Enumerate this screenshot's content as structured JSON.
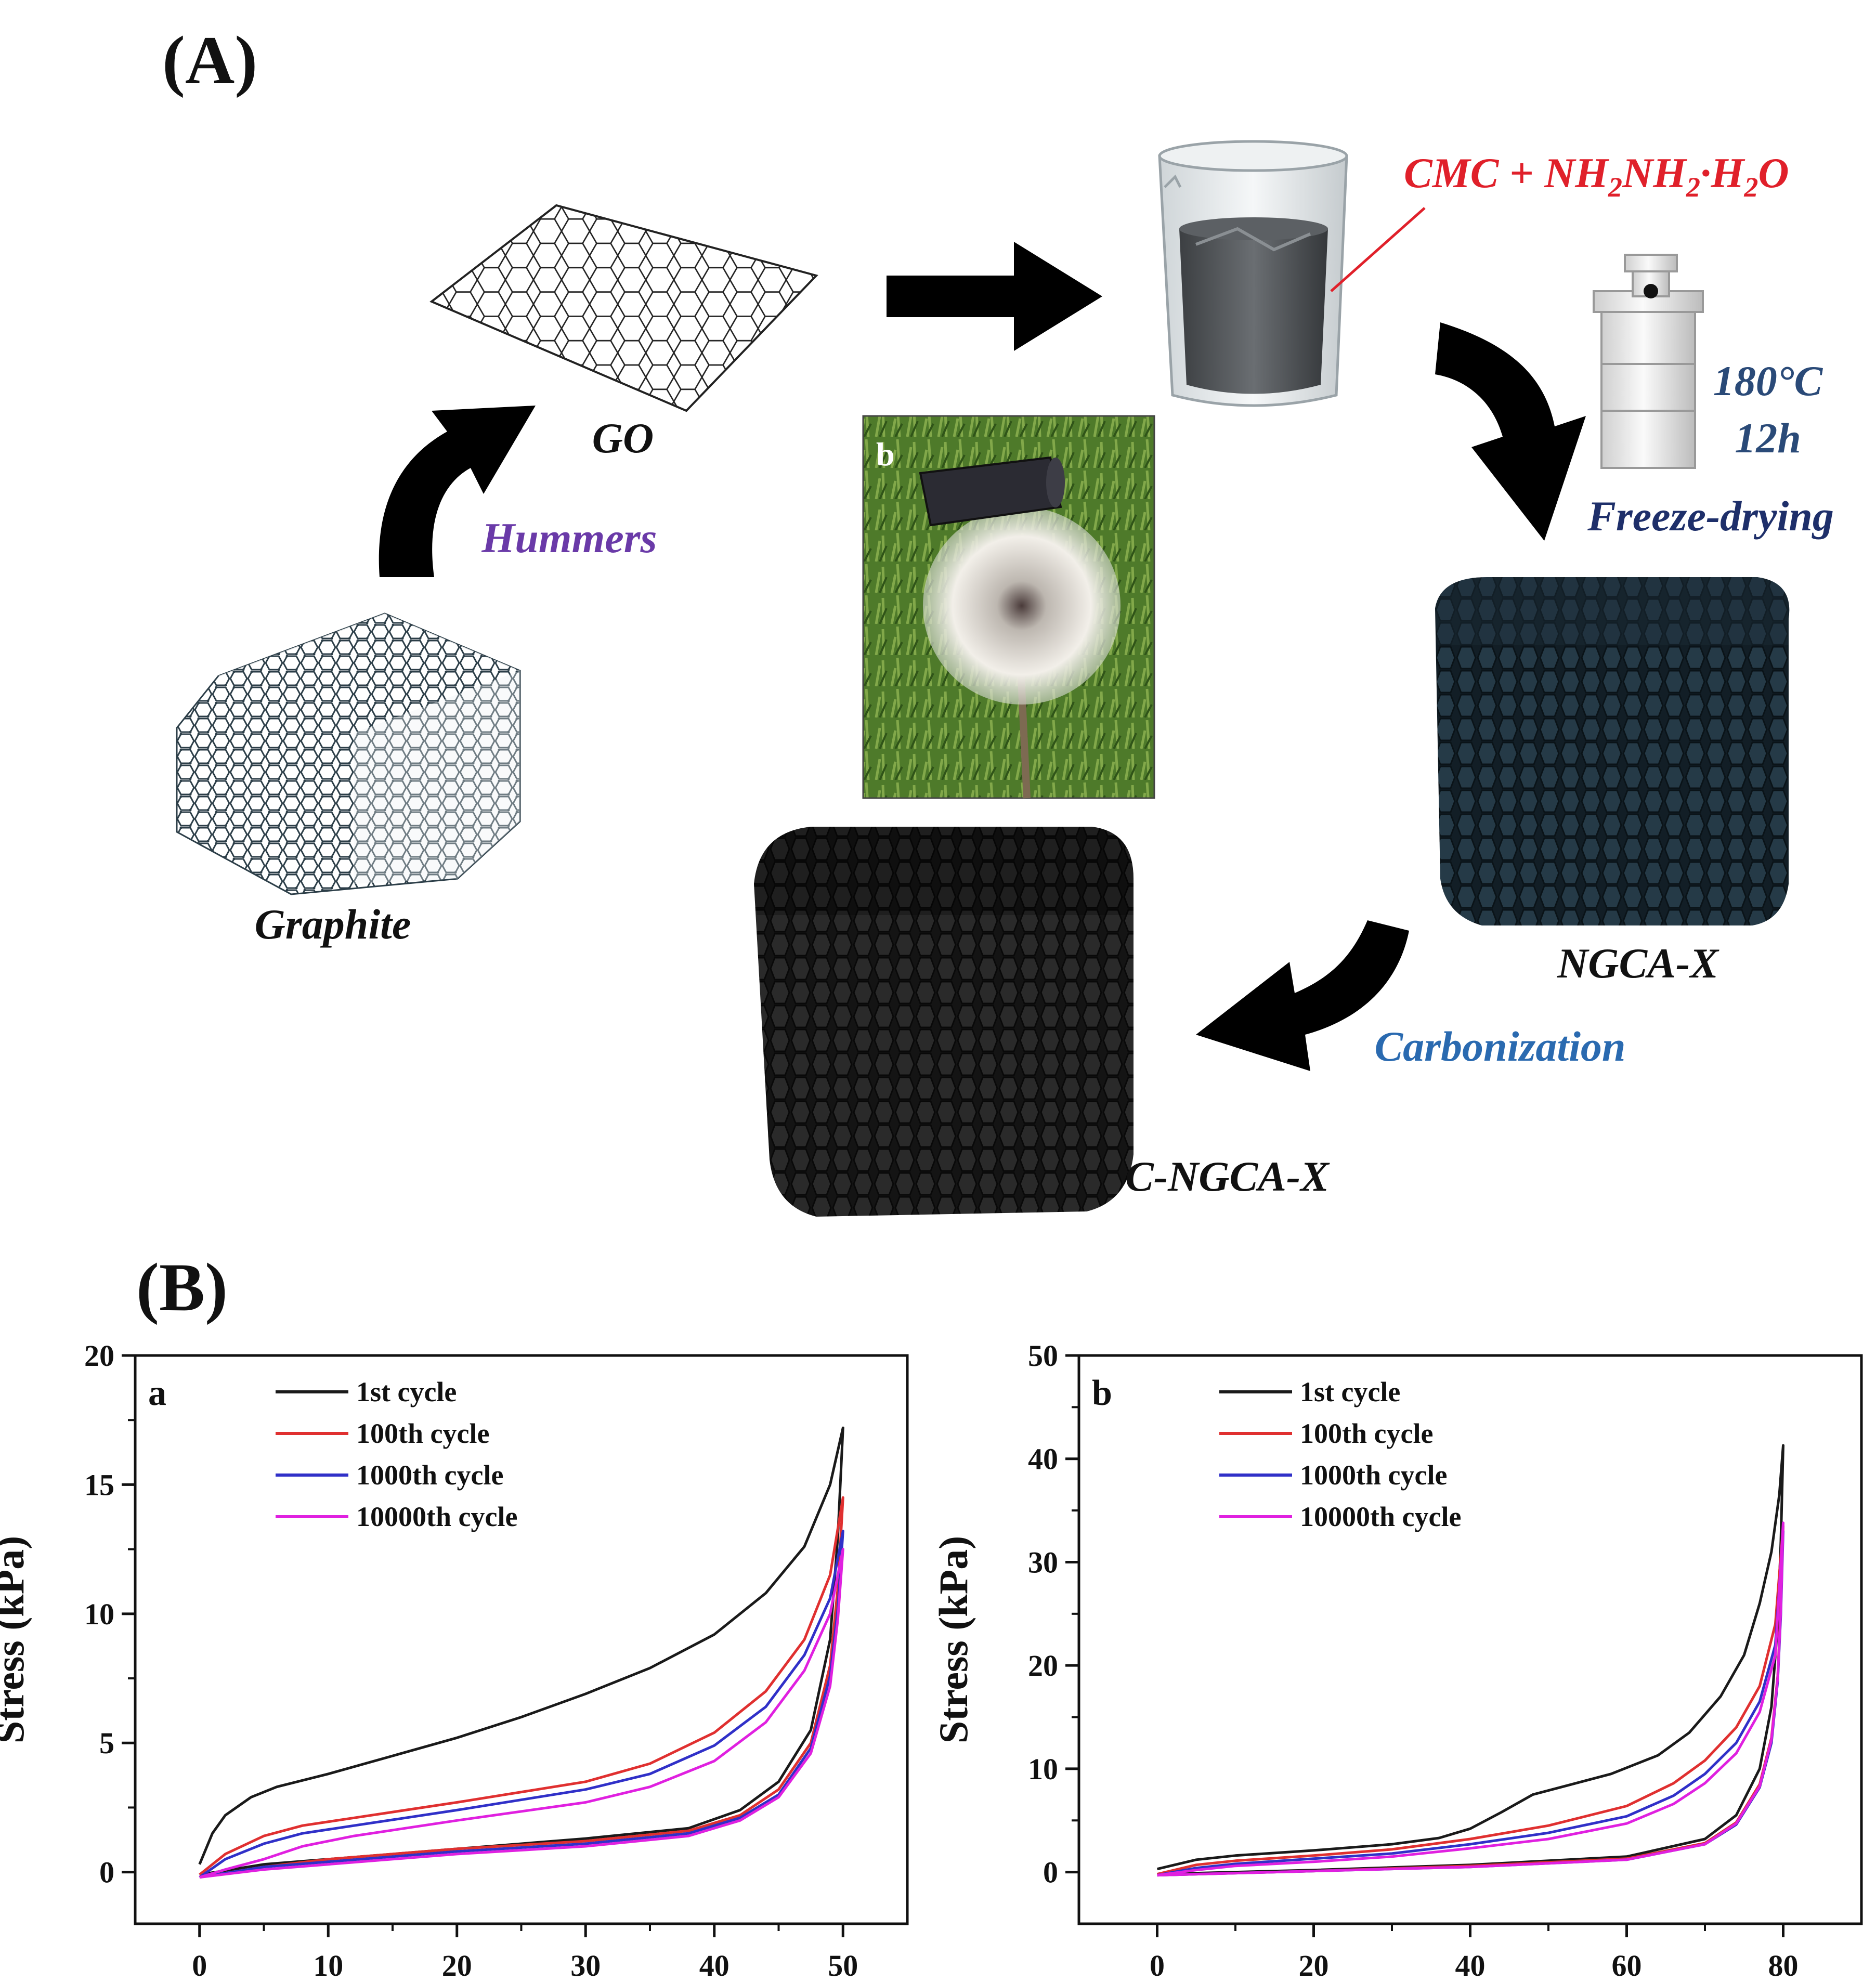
{
  "panels": {
    "A": "(A)",
    "B": "(B)"
  },
  "scheme": {
    "graphite": "Graphite",
    "go": "GO",
    "hummers": "Hummers",
    "reagent_prefix": "CMC + NH",
    "reagent_sub1": "2",
    "reagent_mid": "NH",
    "reagent_sub2": "2",
    "reagent_suffix": "·H",
    "reagent_sub3": "2",
    "reagent_end": "O",
    "temperature": "180°C",
    "duration": "12h",
    "freeze_drying": "Freeze-drying",
    "ngca": "NGCA-X",
    "carbonization": "Carbonization",
    "cngca": "C-NGCA-X",
    "photo_letter": "b"
  },
  "colors": {
    "hummers": "#6a3aa8",
    "reagent": "#e0202a",
    "hydrothermal": "#2a4a78",
    "freeze": "#1e2f6a",
    "carbonization": "#2a6ab0",
    "arrow": "#000000"
  },
  "chart_data": [
    {
      "type": "line",
      "panel_letter": "a",
      "ylabel": "Stress (kPa)",
      "xlim": [
        -5,
        55
      ],
      "ylim": [
        -2,
        20
      ],
      "xticks": [
        0,
        10,
        20,
        30,
        40,
        50
      ],
      "yticks": [
        0,
        5,
        10,
        15,
        20
      ],
      "legend_position": "top-left",
      "series": [
        {
          "name": "1st cycle",
          "color": "#1a1a1a",
          "loading": [
            [
              0,
              0.3
            ],
            [
              1,
              1.5
            ],
            [
              2,
              2.2
            ],
            [
              4,
              2.9
            ],
            [
              6,
              3.3
            ],
            [
              10,
              3.8
            ],
            [
              15,
              4.5
            ],
            [
              20,
              5.2
            ],
            [
              25,
              6.0
            ],
            [
              30,
              6.9
            ],
            [
              35,
              7.9
            ],
            [
              40,
              9.2
            ],
            [
              44,
              10.8
            ],
            [
              47,
              12.6
            ],
            [
              49,
              15.0
            ],
            [
              50,
              17.2
            ]
          ],
          "unloading": [
            [
              50,
              17.2
            ],
            [
              49.6,
              13.0
            ],
            [
              49,
              9.0
            ],
            [
              47.5,
              5.5
            ],
            [
              45,
              3.5
            ],
            [
              42,
              2.4
            ],
            [
              38,
              1.7
            ],
            [
              30,
              1.3
            ],
            [
              20,
              0.9
            ],
            [
              10,
              0.5
            ],
            [
              5,
              0.3
            ],
            [
              0,
              -0.1
            ]
          ]
        },
        {
          "name": "100th cycle",
          "color": "#e03030",
          "loading": [
            [
              0,
              -0.1
            ],
            [
              2,
              0.7
            ],
            [
              5,
              1.4
            ],
            [
              8,
              1.8
            ],
            [
              12,
              2.1
            ],
            [
              20,
              2.7
            ],
            [
              30,
              3.5
            ],
            [
              35,
              4.2
            ],
            [
              40,
              5.4
            ],
            [
              44,
              7.0
            ],
            [
              47,
              9.0
            ],
            [
              49,
              11.5
            ],
            [
              50,
              14.5
            ]
          ],
          "unloading": [
            [
              50,
              14.5
            ],
            [
              49.6,
              11.0
            ],
            [
              49,
              8.0
            ],
            [
              47.5,
              5.0
            ],
            [
              45,
              3.2
            ],
            [
              42,
              2.2
            ],
            [
              38,
              1.6
            ],
            [
              30,
              1.2
            ],
            [
              20,
              0.9
            ],
            [
              10,
              0.5
            ],
            [
              5,
              0.2
            ],
            [
              0,
              -0.2
            ]
          ]
        },
        {
          "name": "1000th cycle",
          "color": "#3030c8",
          "loading": [
            [
              0,
              -0.2
            ],
            [
              2,
              0.5
            ],
            [
              5,
              1.1
            ],
            [
              8,
              1.5
            ],
            [
              12,
              1.8
            ],
            [
              20,
              2.4
            ],
            [
              30,
              3.2
            ],
            [
              35,
              3.8
            ],
            [
              40,
              4.9
            ],
            [
              44,
              6.4
            ],
            [
              47,
              8.4
            ],
            [
              49,
              10.6
            ],
            [
              50,
              13.2
            ]
          ],
          "unloading": [
            [
              50,
              13.2
            ],
            [
              49.6,
              10.2
            ],
            [
              49,
              7.6
            ],
            [
              47.5,
              4.8
            ],
            [
              45,
              3.0
            ],
            [
              42,
              2.1
            ],
            [
              38,
              1.5
            ],
            [
              30,
              1.1
            ],
            [
              20,
              0.8
            ],
            [
              10,
              0.4
            ],
            [
              5,
              0.2
            ],
            [
              0,
              -0.2
            ]
          ]
        },
        {
          "name": "10000th cycle",
          "color": "#e020e0",
          "loading": [
            [
              0,
              -0.2
            ],
            [
              2,
              0.1
            ],
            [
              5,
              0.5
            ],
            [
              8,
              1.0
            ],
            [
              12,
              1.4
            ],
            [
              20,
              2.0
            ],
            [
              30,
              2.7
            ],
            [
              35,
              3.3
            ],
            [
              40,
              4.3
            ],
            [
              44,
              5.8
            ],
            [
              47,
              7.8
            ],
            [
              49,
              10.0
            ],
            [
              50,
              12.5
            ]
          ],
          "unloading": [
            [
              50,
              12.5
            ],
            [
              49.6,
              9.8
            ],
            [
              49,
              7.2
            ],
            [
              47.5,
              4.6
            ],
            [
              45,
              2.9
            ],
            [
              42,
              2.0
            ],
            [
              38,
              1.4
            ],
            [
              30,
              1.0
            ],
            [
              20,
              0.7
            ],
            [
              10,
              0.3
            ],
            [
              5,
              0.1
            ],
            [
              0,
              -0.2
            ]
          ]
        }
      ]
    },
    {
      "type": "line",
      "panel_letter": "b",
      "ylabel": "Stress (kPa)",
      "xlim": [
        -10,
        90
      ],
      "ylim": [
        -5,
        50
      ],
      "xticks": [
        0,
        20,
        40,
        60,
        80
      ],
      "yticks": [
        0,
        10,
        20,
        30,
        40,
        50
      ],
      "legend_position": "top-left",
      "series": [
        {
          "name": "1st cycle",
          "color": "#1a1a1a",
          "loading": [
            [
              0,
              0.3
            ],
            [
              5,
              1.2
            ],
            [
              10,
              1.6
            ],
            [
              20,
              2.1
            ],
            [
              30,
              2.7
            ],
            [
              36,
              3.3
            ],
            [
              40,
              4.2
            ],
            [
              44,
              5.8
            ],
            [
              48,
              7.5
            ],
            [
              52,
              8.3
            ],
            [
              58,
              9.5
            ],
            [
              64,
              11.3
            ],
            [
              68,
              13.5
            ],
            [
              72,
              17.0
            ],
            [
              75,
              21.0
            ],
            [
              77,
              26.0
            ],
            [
              78.5,
              31.0
            ],
            [
              79.5,
              36.5
            ],
            [
              80,
              41.3
            ]
          ],
          "unloading": [
            [
              80,
              41.3
            ],
            [
              79.7,
              32.0
            ],
            [
              79.3,
              24.0
            ],
            [
              78.5,
              16.0
            ],
            [
              77,
              10.0
            ],
            [
              74,
              5.5
            ],
            [
              70,
              3.2
            ],
            [
              60,
              1.5
            ],
            [
              40,
              0.7
            ],
            [
              20,
              0.2
            ],
            [
              0,
              -0.2
            ]
          ]
        },
        {
          "name": "100th cycle",
          "color": "#e03030",
          "loading": [
            [
              0,
              -0.2
            ],
            [
              5,
              0.7
            ],
            [
              10,
              1.1
            ],
            [
              20,
              1.6
            ],
            [
              30,
              2.2
            ],
            [
              40,
              3.2
            ],
            [
              50,
              4.5
            ],
            [
              60,
              6.4
            ],
            [
              66,
              8.6
            ],
            [
              70,
              10.8
            ],
            [
              74,
              14.0
            ],
            [
              77,
              18.0
            ],
            [
              79,
              24.0
            ],
            [
              80,
              33.5
            ]
          ],
          "unloading": [
            [
              80,
              33.5
            ],
            [
              79.7,
              26.0
            ],
            [
              79.3,
              19.0
            ],
            [
              78.5,
              13.0
            ],
            [
              77,
              8.5
            ],
            [
              74,
              4.8
            ],
            [
              70,
              2.8
            ],
            [
              60,
              1.3
            ],
            [
              40,
              0.6
            ],
            [
              20,
              0.1
            ],
            [
              0,
              -0.3
            ]
          ]
        },
        {
          "name": "1000th cycle",
          "color": "#3030c8",
          "loading": [
            [
              0,
              -0.3
            ],
            [
              5,
              0.4
            ],
            [
              10,
              0.8
            ],
            [
              20,
              1.3
            ],
            [
              30,
              1.8
            ],
            [
              40,
              2.7
            ],
            [
              50,
              3.8
            ],
            [
              60,
              5.4
            ],
            [
              66,
              7.4
            ],
            [
              70,
              9.5
            ],
            [
              74,
              12.5
            ],
            [
              77,
              16.5
            ],
            [
              79,
              22.0
            ],
            [
              80,
              33.0
            ]
          ],
          "unloading": [
            [
              80,
              33.0
            ],
            [
              79.7,
              25.0
            ],
            [
              79.3,
              18.5
            ],
            [
              78.5,
              12.5
            ],
            [
              77,
              8.2
            ],
            [
              74,
              4.6
            ],
            [
              70,
              2.7
            ],
            [
              60,
              1.2
            ],
            [
              40,
              0.5
            ],
            [
              20,
              0.1
            ],
            [
              0,
              -0.3
            ]
          ]
        },
        {
          "name": "10000th cycle",
          "color": "#e020e0",
          "loading": [
            [
              0,
              -0.3
            ],
            [
              5,
              0.2
            ],
            [
              10,
              0.6
            ],
            [
              20,
              1.0
            ],
            [
              30,
              1.5
            ],
            [
              40,
              2.3
            ],
            [
              50,
              3.2
            ],
            [
              60,
              4.7
            ],
            [
              66,
              6.6
            ],
            [
              70,
              8.6
            ],
            [
              74,
              11.5
            ],
            [
              77,
              15.5
            ],
            [
              79,
              21.0
            ],
            [
              80,
              33.8
            ]
          ],
          "unloading": [
            [
              80,
              33.8
            ],
            [
              79.7,
              25.5
            ],
            [
              79.3,
              18.8
            ],
            [
              78.5,
              12.8
            ],
            [
              77,
              8.3
            ],
            [
              74,
              4.7
            ],
            [
              70,
              2.7
            ],
            [
              60,
              1.2
            ],
            [
              40,
              0.5
            ],
            [
              20,
              0.1
            ],
            [
              0,
              -0.3
            ]
          ]
        }
      ]
    }
  ]
}
